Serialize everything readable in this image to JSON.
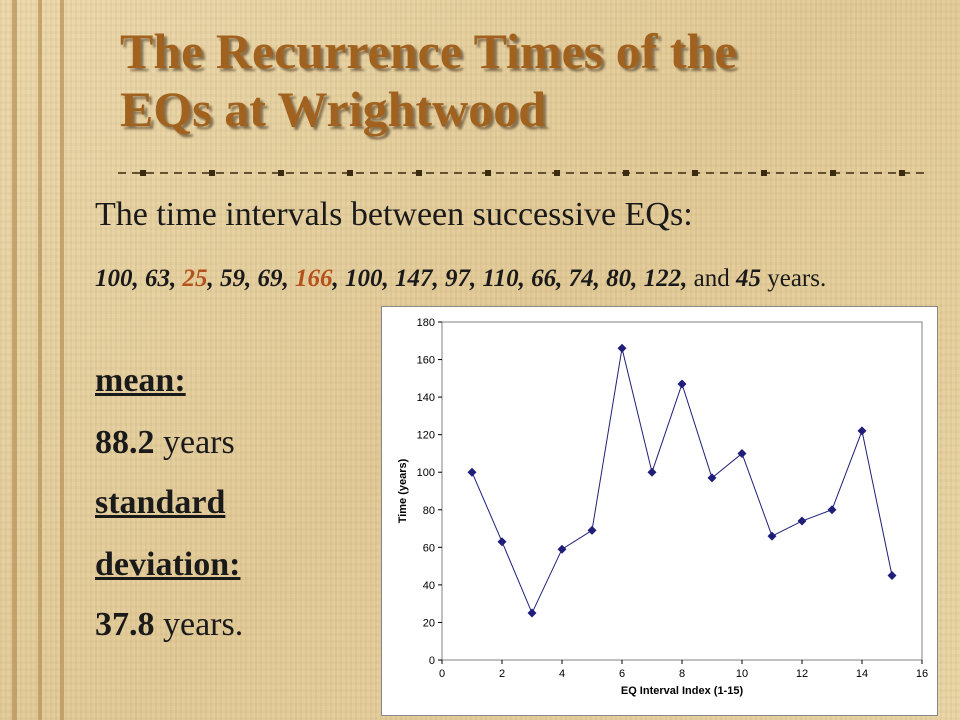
{
  "slide": {
    "title_line1": "The Recurrence Times of the",
    "title_line2": "EQs at Wrightwood",
    "subtitle": "The time intervals between successive EQs:",
    "values_text": [
      {
        "t": "100, 63, ",
        "hl": false
      },
      {
        "t": "25",
        "hl": true
      },
      {
        "t": ", 59, 69, ",
        "hl": false
      },
      {
        "t": "166",
        "hl": true
      },
      {
        "t": ", 100, 147, 97, 110, 66, 74, 80, 122, ",
        "hl": false
      }
    ],
    "values_and": "and",
    "values_last": "45",
    "values_unit": "years.",
    "mean_label": "mean:",
    "mean_value": "88.2",
    "mean_unit": "years",
    "sd_label_1": "standard",
    "sd_label_2": "deviation:",
    "sd_value": "37.8",
    "sd_unit": "years.",
    "title_color": "#a0621e",
    "highlight_color": "#b5511a"
  },
  "chart_data": {
    "type": "line",
    "xlabel": "EQ Interval Index (1-15)",
    "ylabel": "Time (years)",
    "xlim": [
      0,
      16
    ],
    "ylim": [
      0,
      180
    ],
    "xticks": [
      0,
      2,
      4,
      6,
      8,
      10,
      12,
      14,
      16
    ],
    "yticks": [
      0,
      20,
      40,
      60,
      80,
      100,
      120,
      140,
      160,
      180
    ],
    "grid": false,
    "marker": "diamond",
    "color": "#1f1f7a",
    "x": [
      1,
      2,
      3,
      4,
      5,
      6,
      7,
      8,
      9,
      10,
      11,
      12,
      13,
      14,
      15
    ],
    "y": [
      100,
      63,
      25,
      59,
      69,
      166,
      100,
      147,
      97,
      110,
      66,
      74,
      80,
      122,
      45
    ]
  }
}
